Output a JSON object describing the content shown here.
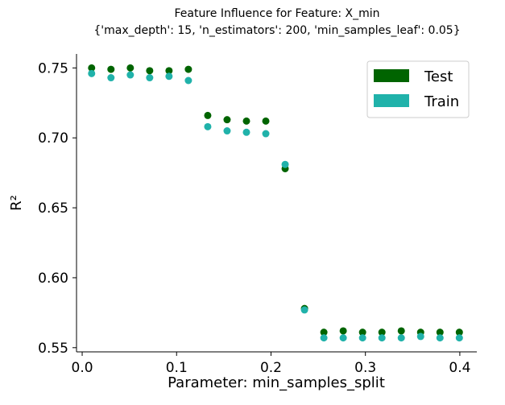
{
  "chart_data": {
    "type": "scatter",
    "title": "Feature Influence for Feature: X_min",
    "subtitle": "{'max_depth': 15, 'n_estimators': 200, 'min_samples_leaf': 0.05}",
    "xlabel": "Parameter: min_samples_split",
    "ylabel": "R²",
    "xlim": [
      -0.006,
      0.418
    ],
    "ylim": [
      0.547,
      0.76
    ],
    "xticks": [
      0.0,
      0.1,
      0.2,
      0.3,
      0.4
    ],
    "xtick_labels": [
      "0.0",
      "0.1",
      "0.2",
      "0.3",
      "0.4"
    ],
    "yticks": [
      0.55,
      0.6,
      0.65,
      0.7,
      0.75
    ],
    "ytick_labels": [
      "0.55",
      "0.60",
      "0.65",
      "0.70",
      "0.75"
    ],
    "grid": false,
    "legend_position": "top-right",
    "x": [
      0.01,
      0.0305,
      0.051,
      0.0715,
      0.092,
      0.1125,
      0.133,
      0.1535,
      0.174,
      0.1945,
      0.215,
      0.2355,
      0.256,
      0.2765,
      0.297,
      0.3175,
      0.338,
      0.3585,
      0.379,
      0.3995
    ],
    "series": [
      {
        "name": "Test",
        "color": "#006400",
        "values": [
          0.75,
          0.749,
          0.75,
          0.748,
          0.748,
          0.749,
          0.716,
          0.713,
          0.712,
          0.712,
          0.678,
          0.578,
          0.561,
          0.562,
          0.561,
          0.561,
          0.562,
          0.561,
          0.561,
          0.561
        ]
      },
      {
        "name": "Train",
        "color": "#20b2aa",
        "values": [
          0.746,
          0.743,
          0.745,
          0.743,
          0.744,
          0.741,
          0.708,
          0.705,
          0.704,
          0.703,
          0.681,
          0.577,
          0.557,
          0.557,
          0.557,
          0.557,
          0.557,
          0.558,
          0.557,
          0.557
        ]
      }
    ]
  }
}
